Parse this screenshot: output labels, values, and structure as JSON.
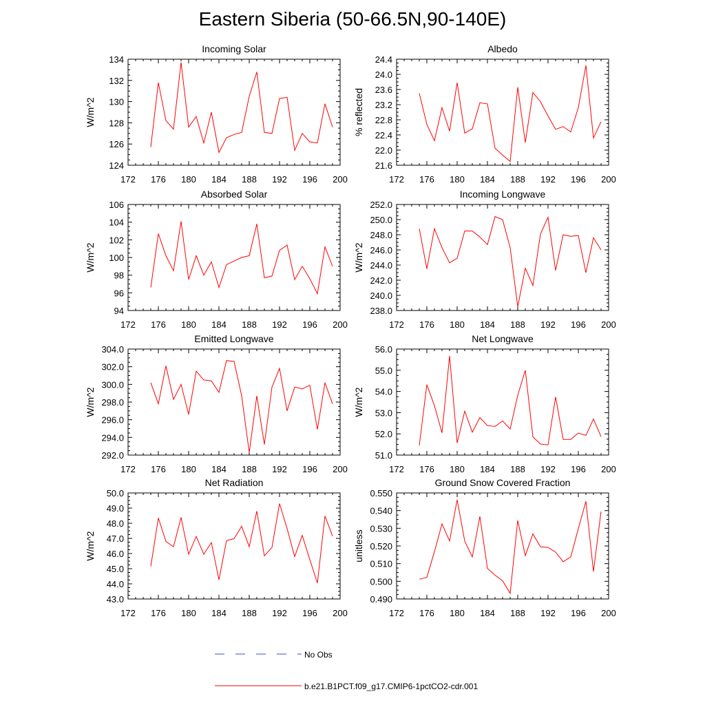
{
  "page": {
    "title": "Eastern Siberia (50-66.5N,90-140E)"
  },
  "legend": {
    "items": [
      {
        "label": "No Obs",
        "color": "#3a4dc7",
        "style": "dashed"
      },
      {
        "label": "b.e21.B1PCT.f09_g17.CMIP6-1pctCO2-cdr.001",
        "color": "#ff0000",
        "style": "solid"
      }
    ]
  },
  "chart_data": [
    {
      "type": "line",
      "title": "Incoming Solar",
      "ylabel": "W/m^2",
      "xlim": [
        172,
        200
      ],
      "xticks": [
        172,
        176,
        180,
        184,
        188,
        192,
        196,
        200
      ],
      "ylim": [
        124,
        134
      ],
      "yticks": [
        124,
        126,
        128,
        130,
        132,
        134
      ],
      "ytick_labels": [
        "124",
        "126",
        "128",
        "130",
        "132",
        "134"
      ],
      "series": [
        {
          "color": "#ff0000",
          "x": [
            175,
            176,
            177,
            178,
            179,
            180,
            181,
            182,
            183,
            184,
            185,
            186,
            187,
            188,
            189,
            190,
            191,
            192,
            193,
            194,
            195,
            196,
            197,
            198,
            199
          ],
          "y": [
            125.7,
            131.8,
            128.2,
            127.4,
            133.7,
            127.6,
            128.6,
            126.1,
            129.0,
            125.2,
            126.6,
            126.9,
            127.1,
            130.5,
            132.8,
            127.1,
            127.0,
            130.3,
            130.4,
            125.4,
            127.0,
            126.2,
            126.1,
            129.8,
            127.6
          ]
        }
      ]
    },
    {
      "type": "line",
      "title": "Albedo",
      "ylabel": "% reflected",
      "xlim": [
        172,
        200
      ],
      "xticks": [
        172,
        176,
        180,
        184,
        188,
        192,
        196,
        200
      ],
      "ylim": [
        21.6,
        24.4
      ],
      "yticks": [
        21.6,
        22.0,
        22.4,
        22.8,
        23.2,
        23.6,
        24.0,
        24.4
      ],
      "ytick_labels": [
        "21.6",
        "22.0",
        "22.4",
        "22.8",
        "23.2",
        "23.6",
        "24.0",
        "24.4"
      ],
      "series": [
        {
          "color": "#ff0000",
          "x": [
            175,
            176,
            177,
            178,
            179,
            180,
            181,
            182,
            183,
            184,
            185,
            186,
            187,
            188,
            189,
            190,
            191,
            192,
            193,
            194,
            195,
            196,
            197,
            198,
            199
          ],
          "y": [
            23.5,
            22.68,
            22.25,
            23.12,
            22.5,
            23.78,
            22.45,
            22.56,
            23.25,
            23.22,
            22.05,
            21.87,
            21.7,
            23.66,
            22.2,
            23.52,
            23.28,
            22.9,
            22.55,
            22.62,
            22.48,
            23.12,
            24.24,
            22.32,
            22.75
          ]
        }
      ]
    },
    {
      "type": "line",
      "title": "Absorbed Solar",
      "ylabel": "W/m^2",
      "xlim": [
        172,
        200
      ],
      "xticks": [
        172,
        176,
        180,
        184,
        188,
        192,
        196,
        200
      ],
      "ylim": [
        94,
        106
      ],
      "yticks": [
        94,
        96,
        98,
        100,
        102,
        104,
        106
      ],
      "ytick_labels": [
        "94",
        "96",
        "98",
        "100",
        "102",
        "104",
        "106"
      ],
      "series": [
        {
          "color": "#ff0000",
          "x": [
            175,
            176,
            177,
            178,
            179,
            180,
            181,
            182,
            183,
            184,
            185,
            186,
            187,
            188,
            189,
            190,
            191,
            192,
            193,
            194,
            195,
            196,
            197,
            198,
            199
          ],
          "y": [
            96.6,
            102.7,
            100.2,
            98.5,
            104.1,
            97.5,
            100.2,
            98.0,
            99.5,
            96.6,
            99.2,
            99.6,
            100.0,
            100.2,
            103.8,
            97.7,
            97.9,
            100.8,
            101.4,
            97.5,
            99.0,
            97.6,
            95.9,
            101.2,
            99.0
          ]
        }
      ]
    },
    {
      "type": "line",
      "title": "Incoming Longwave",
      "ylabel": "W/m^2",
      "xlim": [
        172,
        200
      ],
      "xticks": [
        172,
        176,
        180,
        184,
        188,
        192,
        196,
        200
      ],
      "ylim": [
        238,
        252
      ],
      "yticks": [
        238,
        240,
        242,
        244,
        246,
        248,
        250,
        252
      ],
      "ytick_labels": [
        "238.0",
        "240.0",
        "242.0",
        "244.0",
        "246.0",
        "248.0",
        "250.0",
        "252.0"
      ],
      "series": [
        {
          "color": "#ff0000",
          "x": [
            175,
            176,
            177,
            178,
            179,
            180,
            181,
            182,
            183,
            184,
            185,
            186,
            187,
            188,
            189,
            190,
            191,
            192,
            193,
            194,
            195,
            196,
            197,
            198,
            199
          ],
          "y": [
            248.8,
            243.5,
            248.8,
            246.3,
            244.3,
            244.9,
            248.5,
            248.5,
            247.7,
            246.7,
            250.4,
            250.0,
            246.3,
            238.5,
            243.6,
            241.3,
            248.1,
            250.3,
            243.3,
            248.0,
            247.8,
            247.9,
            243.0,
            247.6,
            246.0
          ]
        }
      ]
    },
    {
      "type": "line",
      "title": "Emitted Longwave",
      "ylabel": "W/m^2",
      "xlim": [
        172,
        200
      ],
      "xticks": [
        172,
        176,
        180,
        184,
        188,
        192,
        196,
        200
      ],
      "ylim": [
        292,
        304
      ],
      "yticks": [
        292,
        294,
        296,
        298,
        300,
        302,
        304
      ],
      "ytick_labels": [
        "292.0",
        "294.0",
        "296.0",
        "298.0",
        "300.0",
        "302.0",
        "304.0"
      ],
      "series": [
        {
          "color": "#ff0000",
          "x": [
            175,
            176,
            177,
            178,
            179,
            180,
            181,
            182,
            183,
            184,
            185,
            186,
            187,
            188,
            189,
            190,
            191,
            192,
            193,
            194,
            195,
            196,
            197,
            198,
            199
          ],
          "y": [
            300.2,
            297.8,
            302.1,
            298.3,
            300.0,
            296.6,
            301.5,
            300.5,
            300.4,
            299.1,
            302.7,
            302.6,
            298.7,
            292.3,
            298.7,
            293.2,
            299.7,
            301.8,
            297.0,
            299.7,
            299.5,
            299.9,
            294.9,
            300.2,
            297.8
          ]
        }
      ]
    },
    {
      "type": "line",
      "title": "Net Longwave",
      "ylabel": "W/m^2",
      "xlim": [
        172,
        200
      ],
      "xticks": [
        172,
        176,
        180,
        184,
        188,
        192,
        196,
        200
      ],
      "ylim": [
        51,
        56
      ],
      "yticks": [
        51,
        52,
        53,
        54,
        55,
        56
      ],
      "ytick_labels": [
        "51.0",
        "52.0",
        "53.0",
        "54.0",
        "55.0",
        "56.0"
      ],
      "series": [
        {
          "color": "#ff0000",
          "x": [
            175,
            176,
            177,
            178,
            179,
            180,
            181,
            182,
            183,
            184,
            185,
            186,
            187,
            188,
            189,
            190,
            191,
            192,
            193,
            194,
            195,
            196,
            197,
            198,
            199
          ],
          "y": [
            51.45,
            54.32,
            53.33,
            52.05,
            55.68,
            51.57,
            53.07,
            52.08,
            52.77,
            52.39,
            52.35,
            52.61,
            52.23,
            53.82,
            55.0,
            51.86,
            51.52,
            51.48,
            53.74,
            51.74,
            51.74,
            52.04,
            51.93,
            52.7,
            51.87
          ]
        }
      ]
    },
    {
      "type": "line",
      "title": "Net Radiation",
      "ylabel": "W/m^2",
      "xlim": [
        172,
        200
      ],
      "xticks": [
        172,
        176,
        180,
        184,
        188,
        192,
        196,
        200
      ],
      "ylim": [
        43,
        50
      ],
      "yticks": [
        43,
        44,
        45,
        46,
        47,
        48,
        49,
        50
      ],
      "ytick_labels": [
        "43.0",
        "44.0",
        "45.0",
        "46.0",
        "47.0",
        "48.0",
        "49.0",
        "50.0"
      ],
      "series": [
        {
          "color": "#ff0000",
          "x": [
            175,
            176,
            177,
            178,
            179,
            180,
            181,
            182,
            183,
            184,
            185,
            186,
            187,
            188,
            189,
            190,
            191,
            192,
            193,
            194,
            195,
            196,
            197,
            198,
            199
          ],
          "y": [
            45.15,
            48.35,
            46.8,
            46.45,
            48.38,
            45.95,
            47.13,
            45.95,
            46.73,
            44.27,
            46.85,
            46.98,
            47.8,
            46.45,
            48.8,
            45.85,
            46.4,
            49.3,
            47.65,
            45.8,
            47.2,
            45.6,
            44.05,
            48.48,
            47.15
          ]
        }
      ]
    },
    {
      "type": "line",
      "title": "Ground Snow Covered Fraction",
      "ylabel": "unitless",
      "xlim": [
        172,
        200
      ],
      "xticks": [
        172,
        176,
        180,
        184,
        188,
        192,
        196,
        200
      ],
      "ylim": [
        0.49,
        0.55
      ],
      "yticks": [
        0.49,
        0.5,
        0.51,
        0.52,
        0.53,
        0.54,
        0.55
      ],
      "ytick_labels": [
        "0.490",
        "0.500",
        "0.510",
        "0.520",
        "0.530",
        "0.540",
        "0.550"
      ],
      "series": [
        {
          "color": "#ff0000",
          "x": [
            175,
            176,
            177,
            178,
            179,
            180,
            181,
            182,
            183,
            184,
            185,
            186,
            187,
            188,
            189,
            190,
            191,
            192,
            193,
            194,
            195,
            196,
            197,
            198,
            199
          ],
          "y": [
            0.5012,
            0.5022,
            0.5168,
            0.5325,
            0.5228,
            0.5462,
            0.5228,
            0.5138,
            0.5367,
            0.5073,
            0.5035,
            0.5003,
            0.4932,
            0.5345,
            0.5145,
            0.5268,
            0.5195,
            0.5192,
            0.5165,
            0.5111,
            0.5138,
            0.5298,
            0.5452,
            0.5055,
            0.5395
          ]
        }
      ]
    }
  ]
}
